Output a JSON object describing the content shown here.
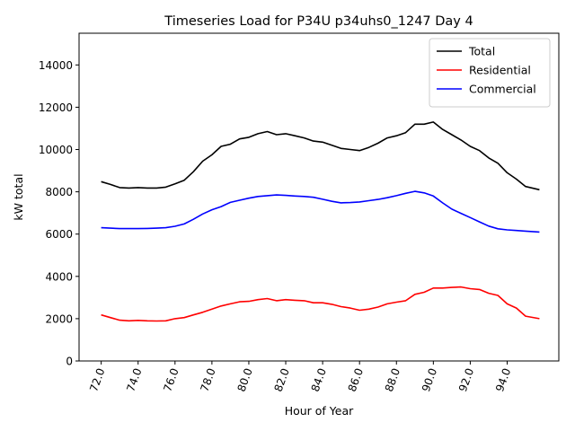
{
  "chart_data": {
    "type": "line",
    "title": "Timeseries Load for P34U p34uhs0_1247  Day 4",
    "xlabel": "Hour of Year",
    "ylabel": "kW total",
    "xlim": [
      70.8,
      96.8
    ],
    "ylim": [
      0,
      15500
    ],
    "xticks": [
      72,
      74,
      76,
      78,
      80,
      82,
      84,
      86,
      88,
      90,
      92,
      94
    ],
    "xtick_labels": [
      "72.0",
      "74.0",
      "76.0",
      "78.0",
      "80.0",
      "82.0",
      "84.0",
      "86.0",
      "88.0",
      "90.0",
      "92.0",
      "94.0"
    ],
    "yticks": [
      0,
      2000,
      4000,
      6000,
      8000,
      10000,
      12000,
      14000
    ],
    "ytick_labels": [
      "0",
      "2000",
      "4000",
      "6000",
      "8000",
      "10000",
      "12000",
      "14000"
    ],
    "legend_position": "top-right",
    "x": [
      72.0,
      72.5,
      73.0,
      73.5,
      74.0,
      74.5,
      75.0,
      75.5,
      76.0,
      76.5,
      77.0,
      77.5,
      78.0,
      78.5,
      79.0,
      79.5,
      80.0,
      80.5,
      81.0,
      81.5,
      82.0,
      82.5,
      83.0,
      83.5,
      84.0,
      84.5,
      85.0,
      85.5,
      86.0,
      86.5,
      87.0,
      87.5,
      88.0,
      88.5,
      89.0,
      89.5,
      90.0,
      90.5,
      91.0,
      91.5,
      92.0,
      92.5,
      93.0,
      93.5,
      94.0,
      94.5,
      95.0,
      95.75
    ],
    "series": [
      {
        "name": "Total",
        "color": "#000000",
        "values": [
          8480,
          8350,
          8200,
          8180,
          8200,
          8180,
          8180,
          8220,
          8380,
          8550,
          8950,
          9450,
          9750,
          10150,
          10250,
          10500,
          10580,
          10750,
          10850,
          10700,
          10750,
          10650,
          10550,
          10400,
          10350,
          10200,
          10050,
          10000,
          9950,
          10100,
          10300,
          10550,
          10650,
          10800,
          11200,
          11200,
          11300,
          10950,
          10700,
          10450,
          10150,
          9950,
          9600,
          9350,
          8900,
          8600,
          8250,
          8100
        ]
      },
      {
        "name": "Residential",
        "color": "#ff0000",
        "values": [
          2180,
          2050,
          1930,
          1900,
          1920,
          1900,
          1890,
          1900,
          2000,
          2050,
          2180,
          2300,
          2450,
          2600,
          2700,
          2800,
          2820,
          2900,
          2950,
          2850,
          2900,
          2870,
          2850,
          2750,
          2750,
          2680,
          2570,
          2500,
          2400,
          2450,
          2550,
          2700,
          2780,
          2850,
          3150,
          3250,
          3450,
          3450,
          3480,
          3500,
          3420,
          3380,
          3200,
          3100,
          2700,
          2500,
          2120,
          2000
        ]
      },
      {
        "name": "Commercial",
        "color": "#0000ff",
        "values": [
          6300,
          6280,
          6260,
          6260,
          6260,
          6270,
          6280,
          6300,
          6370,
          6480,
          6700,
          6950,
          7150,
          7300,
          7500,
          7600,
          7700,
          7780,
          7820,
          7850,
          7830,
          7800,
          7780,
          7740,
          7650,
          7550,
          7480,
          7490,
          7520,
          7580,
          7640,
          7720,
          7820,
          7930,
          8020,
          7950,
          7800,
          7480,
          7180,
          6980,
          6780,
          6580,
          6380,
          6250,
          6200,
          6170,
          6140,
          6100
        ]
      }
    ]
  }
}
